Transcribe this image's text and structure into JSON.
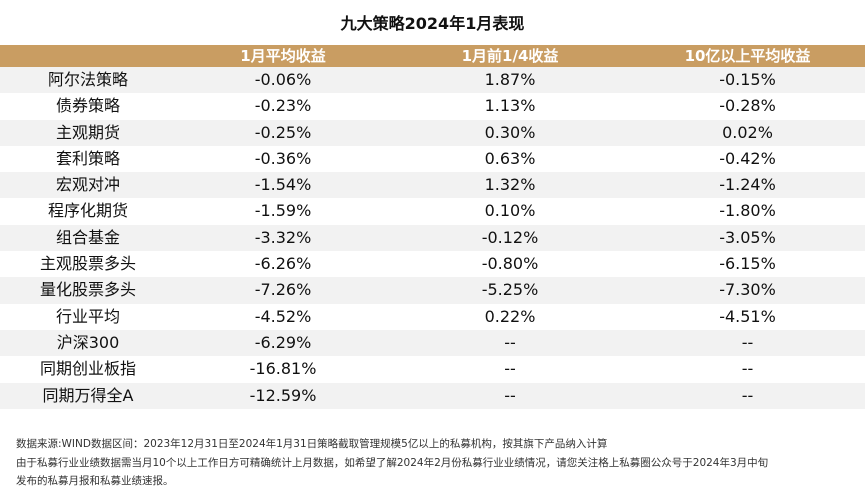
{
  "title": "九大策略2024年1月表现",
  "columns": [
    "",
    "1月平均收益",
    "1月前1/4收益",
    "10亿以上平均收益"
  ],
  "colors": {
    "header_bg": "#c99d62",
    "stripe": "#f2f2f2"
  },
  "rows": [
    [
      "阿尔法策略",
      "-0.06%",
      "1.87%",
      "-0.15%"
    ],
    [
      "债券策略",
      "-0.23%",
      "1.13%",
      "-0.28%"
    ],
    [
      "主观期货",
      "-0.25%",
      "0.30%",
      "0.02%"
    ],
    [
      "套利策略",
      "-0.36%",
      "0.63%",
      "-0.42%"
    ],
    [
      "宏观对冲",
      "-1.54%",
      "1.32%",
      "-1.24%"
    ],
    [
      "程序化期货",
      "-1.59%",
      "0.10%",
      "-1.80%"
    ],
    [
      "组合基金",
      "-3.32%",
      "-0.12%",
      "-3.05%"
    ],
    [
      "主观股票多头",
      "-6.26%",
      "-0.80%",
      "-6.15%"
    ],
    [
      "量化股票多头",
      "-7.26%",
      "-5.25%",
      "-7.30%"
    ],
    [
      "行业平均",
      "-4.52%",
      "0.22%",
      "-4.51%"
    ],
    [
      "沪深300",
      "-6.29%",
      "--",
      "--"
    ],
    [
      "同期创业板指",
      "-16.81%",
      "--",
      "--"
    ],
    [
      "同期万得全A",
      "-12.59%",
      "--",
      "--"
    ]
  ],
  "footnotes": [
    "数据来源:WIND数据区间：2023年12月31日至2024年1月31日策略截取管理规模5亿以上的私募机构，按其旗下产品纳入计算",
    "由于私募行业业绩数据需当月10个以上工作日方可精确统计上月数据，如希望了解2024年2月份私募行业业绩情况，请您关注格上私募圈公众号于2024年3月中旬",
    "发布的私募月报和私募业绩速报。"
  ]
}
